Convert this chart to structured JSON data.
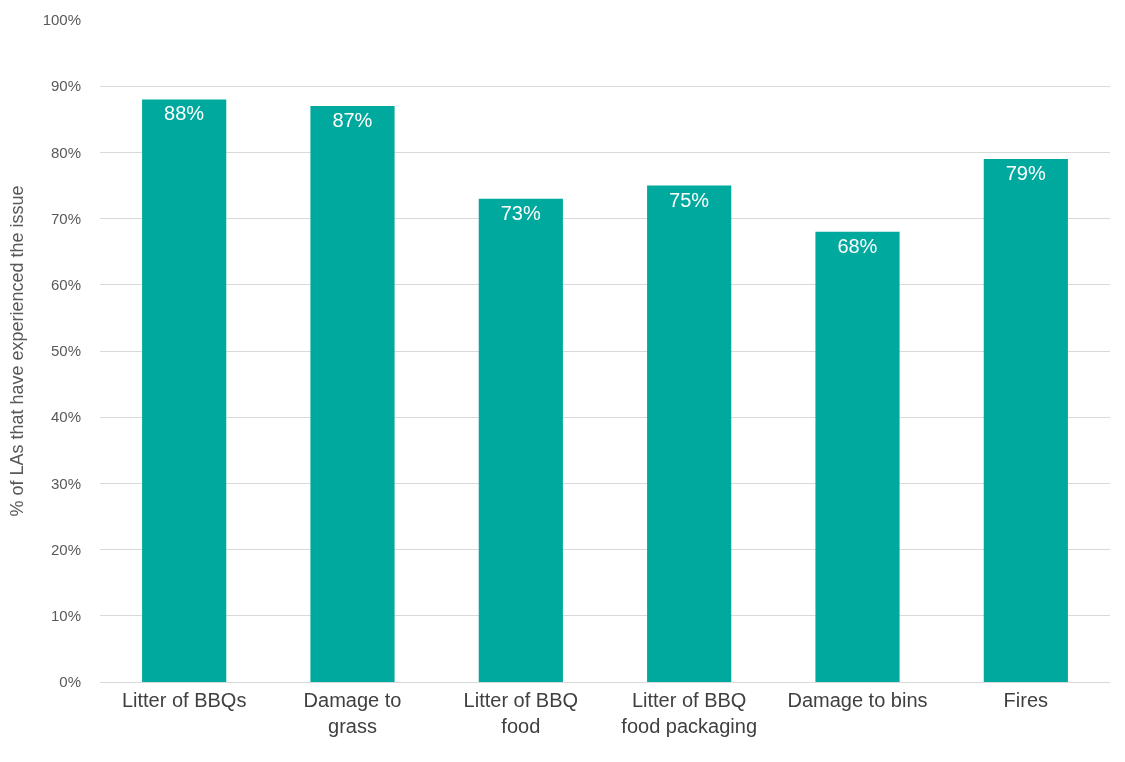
{
  "chart_data": {
    "type": "bar",
    "ylabel": "% of LAs that have experienced the issue",
    "categories": [
      "Litter of BBQs",
      "Damage to grass",
      "Litter of BBQ food",
      "Litter of BBQ food packaging",
      "Damage to bins",
      "Fires"
    ],
    "values": [
      88,
      87,
      73,
      75,
      68,
      79
    ],
    "value_labels": [
      "88%",
      "87%",
      "73%",
      "75%",
      "68%",
      "79%"
    ],
    "color": "#00a99d",
    "ylim": [
      0,
      100
    ],
    "yticks": [
      {
        "value": 0,
        "label": "0%"
      },
      {
        "value": 10,
        "label": "10%"
      },
      {
        "value": 20,
        "label": "20%"
      },
      {
        "value": 30,
        "label": "30%"
      },
      {
        "value": 40,
        "label": "40%"
      },
      {
        "value": 50,
        "label": "50%"
      },
      {
        "value": 60,
        "label": "60%"
      },
      {
        "value": 70,
        "label": "70%"
      },
      {
        "value": 80,
        "label": "80%"
      },
      {
        "value": 90,
        "label": "90%"
      },
      {
        "value": 100,
        "label": "100%"
      }
    ],
    "grid": "y"
  }
}
